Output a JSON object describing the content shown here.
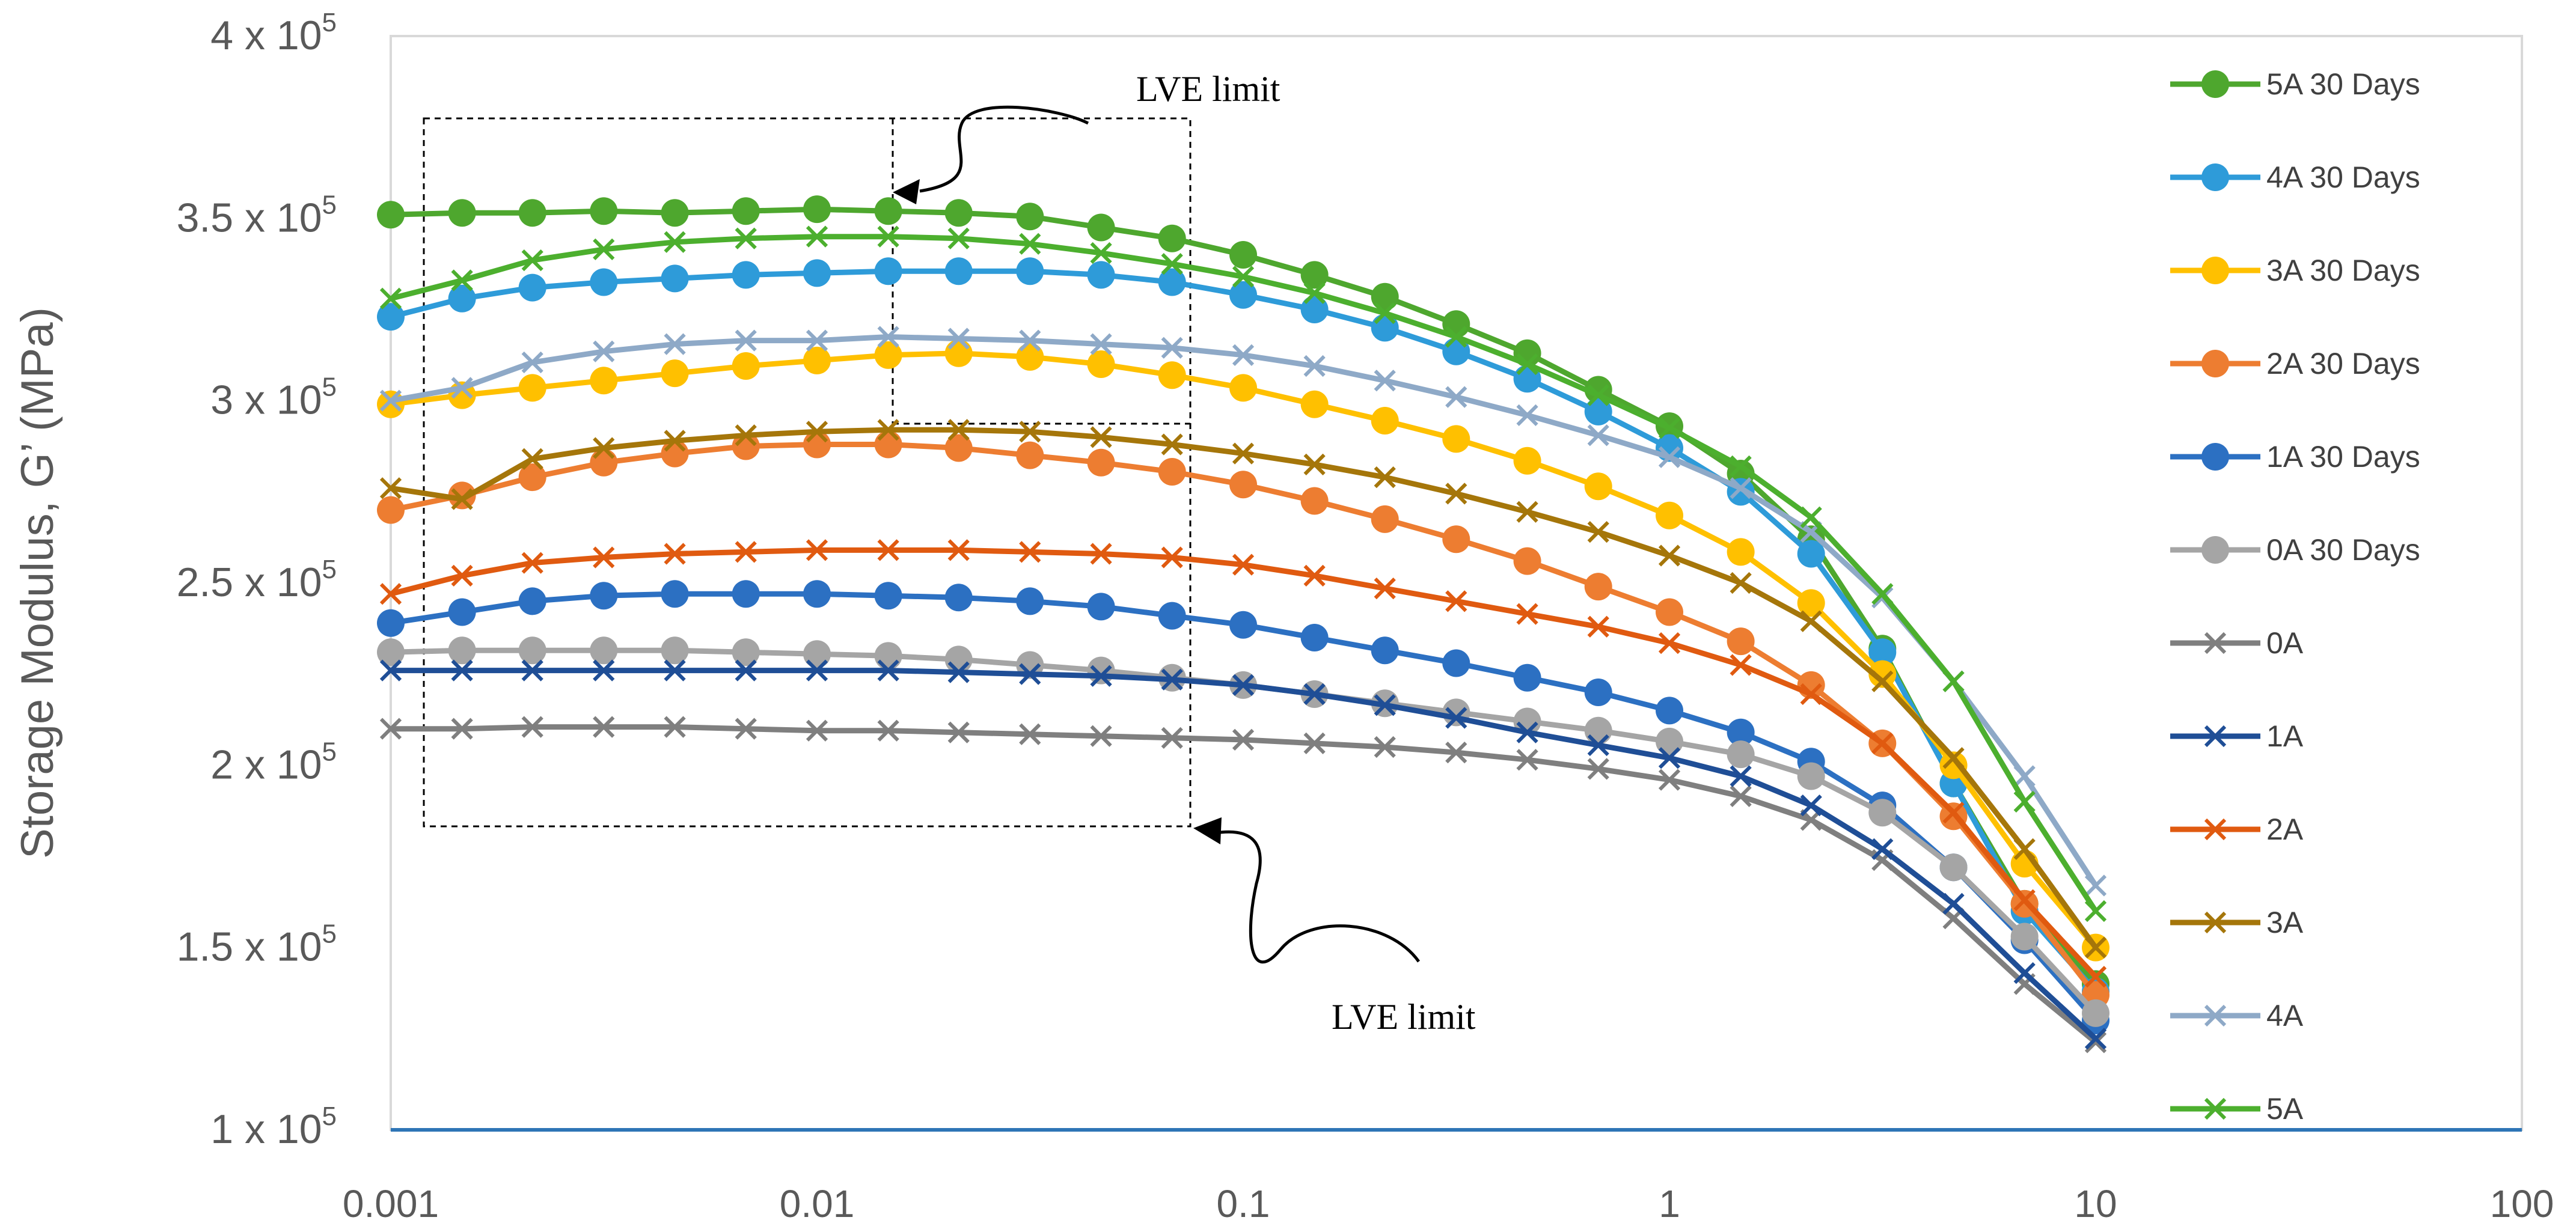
{
  "chart_data": {
    "type": "line",
    "title": "",
    "xlabel": "",
    "ylabel": "Storage Modulus, G’   (MPa)",
    "xscale": "log",
    "xlim": [
      0.001,
      100
    ],
    "ylim": [
      100000,
      400000
    ],
    "grid": false,
    "legend_position": "right",
    "x_ticks": [
      {
        "value": 0.001,
        "label": "0.001"
      },
      {
        "value": 0.01,
        "label": "0.01"
      },
      {
        "value": 0.1,
        "label": "0.1"
      },
      {
        "value": 1,
        "label": "1"
      },
      {
        "value": 10,
        "label": "10"
      },
      {
        "value": 100,
        "label": "100"
      }
    ],
    "y_ticks": [
      {
        "value": 100000,
        "mant": "1 x 10",
        "exp": "5"
      },
      {
        "value": 150000,
        "mant": "1.5 x 10",
        "exp": "5"
      },
      {
        "value": 200000,
        "mant": "2 x 10",
        "exp": "5"
      },
      {
        "value": 250000,
        "mant": "2.5 x 10",
        "exp": "5"
      },
      {
        "value": 300000,
        "mant": "3 x 10",
        "exp": "5"
      },
      {
        "value": 350000,
        "mant": "3.5 x 10",
        "exp": "5"
      },
      {
        "value": 400000,
        "mant": "4 x 10",
        "exp": "5"
      }
    ],
    "x": [
      0.001,
      0.00147,
      0.00215,
      0.00316,
      0.00464,
      0.00681,
      0.01,
      0.0147,
      0.0215,
      0.0316,
      0.0464,
      0.0681,
      0.1,
      0.147,
      0.215,
      0.316,
      0.464,
      0.681,
      1,
      1.47,
      2.15,
      3.16,
      4.64,
      6.81,
      10
    ],
    "series": [
      {
        "name": "5A 30 Days",
        "color": "#4EA72E",
        "marker": "circle",
        "values": [
          351000,
          351500,
          351500,
          352000,
          351500,
          352000,
          352500,
          352000,
          351500,
          350500,
          347500,
          344500,
          340000,
          334500,
          328500,
          321000,
          313000,
          303000,
          293000,
          280000,
          262000,
          232000,
          195000,
          162000,
          140000
        ]
      },
      {
        "name": "4A 30 Days",
        "color": "#2E9BD9",
        "marker": "circle",
        "values": [
          323000,
          328000,
          331000,
          332500,
          333500,
          334500,
          335000,
          335500,
          335500,
          335500,
          334500,
          332500,
          329000,
          325000,
          320000,
          313500,
          306000,
          297000,
          287000,
          275000,
          258000,
          231000,
          195000,
          160000,
          138000
        ]
      },
      {
        "name": "3A 30 Days",
        "color": "#FFC000",
        "marker": "circle",
        "values": [
          299000,
          301500,
          303500,
          305500,
          307500,
          309500,
          311000,
          312500,
          313000,
          312000,
          310000,
          307000,
          303500,
          299000,
          294500,
          289500,
          283500,
          276500,
          268500,
          258500,
          244500,
          225000,
          200000,
          173000,
          150000
        ]
      },
      {
        "name": "2A 30 Days",
        "color": "#ED7D31",
        "marker": "circle",
        "values": [
          270000,
          274000,
          279000,
          283000,
          285500,
          287500,
          288000,
          288000,
          287000,
          285000,
          283000,
          280500,
          277000,
          272500,
          267500,
          262000,
          256000,
          249000,
          242000,
          234000,
          222000,
          206000,
          186000,
          162000,
          137000
        ]
      },
      {
        "name": "1A 30 Days",
        "color": "#2C70C2",
        "marker": "circle",
        "values": [
          239000,
          242000,
          245000,
          246500,
          247000,
          247000,
          247000,
          246500,
          246000,
          245000,
          243500,
          241000,
          238500,
          235000,
          231500,
          228000,
          224000,
          220000,
          215000,
          209000,
          201000,
          189000,
          172000,
          152000,
          130000
        ]
      },
      {
        "name": "0A 30 Days",
        "color": "#A5A5A5",
        "marker": "circle",
        "values": [
          231000,
          231500,
          231500,
          231500,
          231500,
          231000,
          230500,
          230000,
          229000,
          227500,
          226000,
          224000,
          222000,
          219500,
          217000,
          214500,
          212000,
          209500,
          206500,
          203000,
          197000,
          187000,
          172000,
          153000,
          132000
        ]
      },
      {
        "name": "0A",
        "color": "#7F7F7F",
        "marker": "x",
        "values": [
          210000,
          210000,
          210500,
          210500,
          210500,
          210000,
          209500,
          209500,
          209000,
          208500,
          208000,
          207500,
          207000,
          206000,
          205000,
          203500,
          201500,
          199000,
          196000,
          191500,
          185000,
          174000,
          158000,
          140000,
          124000
        ]
      },
      {
        "name": "1A",
        "color": "#1F4E96",
        "marker": "x",
        "values": [
          226000,
          226000,
          226000,
          226000,
          226000,
          226000,
          226000,
          226000,
          225500,
          225000,
          224500,
          223500,
          222000,
          219500,
          216500,
          213000,
          209000,
          205500,
          202000,
          197000,
          189000,
          177000,
          162000,
          143000,
          125000
        ]
      },
      {
        "name": "2A",
        "color": "#E05A10",
        "marker": "x",
        "values": [
          247000,
          252000,
          255500,
          257000,
          258000,
          258500,
          259000,
          259000,
          259000,
          258500,
          258000,
          257000,
          255000,
          252000,
          248500,
          245000,
          241500,
          238000,
          233500,
          227500,
          219500,
          206000,
          187000,
          163000,
          142000
        ]
      },
      {
        "name": "3A",
        "color": "#A5760A",
        "marker": "x",
        "values": [
          276000,
          273000,
          284000,
          287000,
          289000,
          290500,
          291500,
          292000,
          292000,
          291500,
          290000,
          288000,
          285500,
          282500,
          279000,
          274500,
          269500,
          264000,
          257500,
          250000,
          239500,
          223000,
          202000,
          177000,
          150000
        ]
      },
      {
        "name": "4A",
        "color": "#8EA9C7",
        "marker": "x",
        "values": [
          300000,
          303500,
          310500,
          313500,
          315500,
          316500,
          316500,
          317500,
          317000,
          316500,
          315500,
          314500,
          312500,
          309500,
          305500,
          301000,
          296000,
          290500,
          284500,
          276000,
          264000,
          246000,
          223000,
          197000,
          167000
        ]
      },
      {
        "name": "5A",
        "color": "#4CAF2E",
        "marker": "x",
        "values": [
          328000,
          333000,
          338500,
          341500,
          343500,
          344500,
          345000,
          345000,
          344500,
          343000,
          340500,
          337500,
          334000,
          329500,
          324000,
          317500,
          310000,
          301500,
          292500,
          282000,
          268000,
          247000,
          223000,
          190000,
          160000
        ]
      }
    ],
    "annotations": [
      {
        "text": "LVE limit",
        "position": "top"
      },
      {
        "text": "LVE limit",
        "position": "bottom"
      }
    ]
  }
}
